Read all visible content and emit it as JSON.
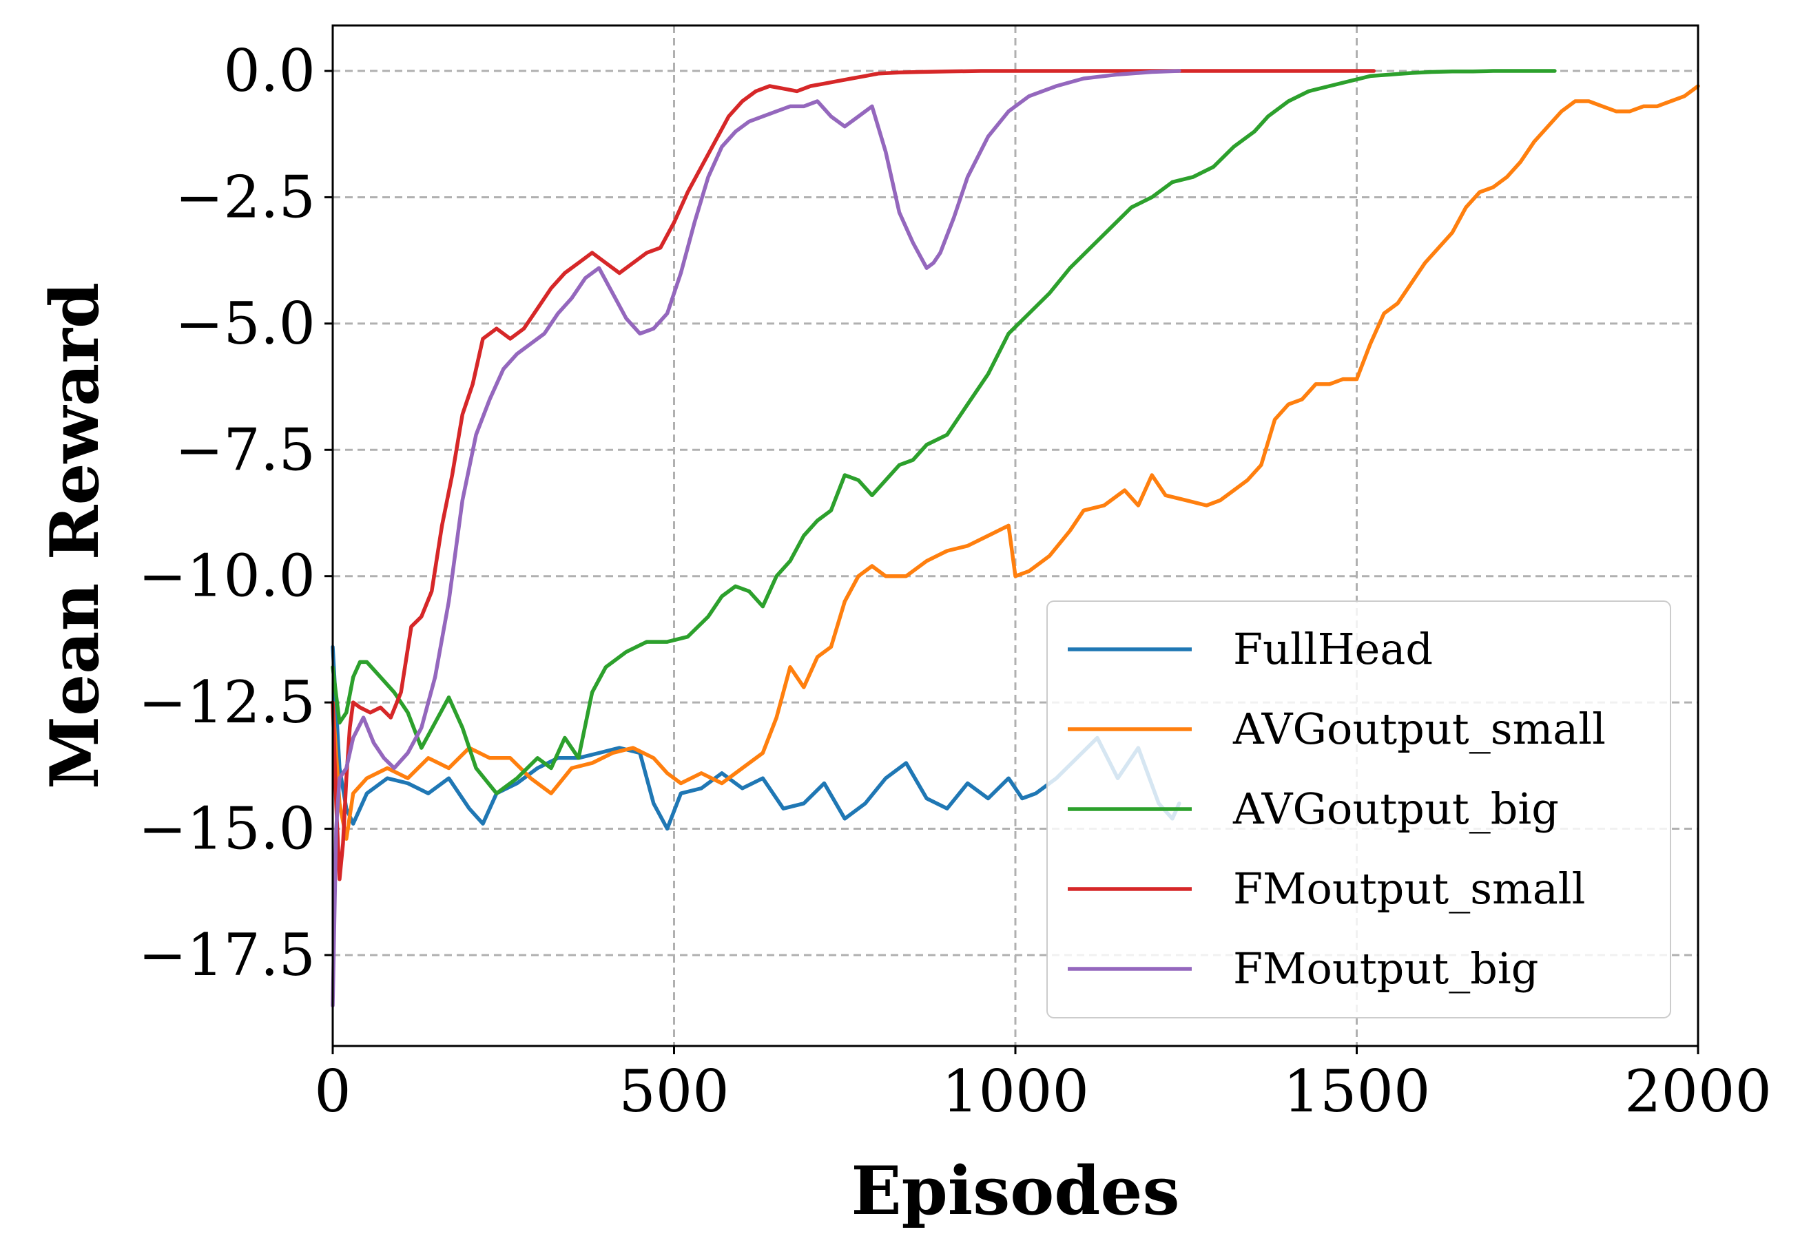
{
  "chart_data": {
    "type": "line",
    "title": "",
    "xlabel": "Episodes",
    "ylabel": "Mean Reward",
    "xlim": [
      0,
      2000
    ],
    "ylim": [
      -19.3,
      0.9
    ],
    "xticks": [
      0,
      500,
      1000,
      1500,
      2000
    ],
    "xtick_labels": [
      "0",
      "500",
      "1000",
      "1500",
      "2000"
    ],
    "yticks": [
      0.0,
      -2.5,
      -5.0,
      -7.5,
      -10.0,
      -12.5,
      -15.0,
      -17.5
    ],
    "ytick_labels": [
      "0.0",
      "−2.5",
      "−5.0",
      "−7.5",
      "−10.0",
      "−12.5",
      "−15.0",
      "−17.5"
    ],
    "grid": true,
    "legend_position": "lower-right",
    "series": [
      {
        "name": "FullHead",
        "color": "#1f77b4",
        "x": [
          0,
          10,
          20,
          30,
          50,
          80,
          110,
          140,
          170,
          200,
          220,
          240,
          270,
          300,
          330,
          360,
          390,
          420,
          450,
          470,
          490,
          510,
          540,
          570,
          600,
          630,
          660,
          690,
          720,
          750,
          780,
          810,
          840,
          870,
          900,
          930,
          960,
          990,
          1010,
          1030,
          1060,
          1090,
          1120,
          1150,
          1180,
          1210,
          1230,
          1240
        ],
        "y": [
          -11.4,
          -13.8,
          -14.6,
          -14.9,
          -14.3,
          -14.0,
          -14.1,
          -14.3,
          -14.0,
          -14.6,
          -14.9,
          -14.3,
          -14.1,
          -13.8,
          -13.6,
          -13.6,
          -13.5,
          -13.4,
          -13.5,
          -14.5,
          -15.0,
          -14.3,
          -14.2,
          -13.9,
          -14.2,
          -14.0,
          -14.6,
          -14.5,
          -14.1,
          -14.8,
          -14.5,
          -14.0,
          -13.7,
          -14.4,
          -14.6,
          -14.1,
          -14.4,
          -14.0,
          -14.4,
          -14.3,
          -14.0,
          -13.6,
          -13.2,
          -14.0,
          -13.4,
          -14.5,
          -14.8,
          -14.5
        ]
      },
      {
        "name": "AVGoutput_small",
        "color": "#ff7f0e",
        "x": [
          0,
          10,
          20,
          30,
          50,
          80,
          110,
          140,
          170,
          200,
          230,
          260,
          290,
          320,
          350,
          380,
          410,
          440,
          470,
          490,
          510,
          540,
          570,
          600,
          630,
          650,
          670,
          690,
          710,
          730,
          750,
          770,
          790,
          810,
          840,
          870,
          900,
          930,
          960,
          990,
          1000,
          1020,
          1050,
          1080,
          1100,
          1130,
          1160,
          1180,
          1200,
          1220,
          1250,
          1280,
          1300,
          1320,
          1340,
          1360,
          1380,
          1400,
          1420,
          1440,
          1460,
          1480,
          1500,
          1520,
          1540,
          1560,
          1580,
          1600,
          1620,
          1640,
          1660,
          1680,
          1700,
          1720,
          1740,
          1760,
          1780,
          1800,
          1820,
          1840,
          1860,
          1880,
          1900,
          1920,
          1940,
          1960,
          1980,
          2000
        ],
        "y": [
          -12.5,
          -14.5,
          -15.2,
          -14.3,
          -14.0,
          -13.8,
          -14.0,
          -13.6,
          -13.8,
          -13.4,
          -13.6,
          -13.6,
          -14.0,
          -14.3,
          -13.8,
          -13.7,
          -13.5,
          -13.4,
          -13.6,
          -13.9,
          -14.1,
          -13.9,
          -14.1,
          -13.8,
          -13.5,
          -12.8,
          -11.8,
          -12.2,
          -11.6,
          -11.4,
          -10.5,
          -10.0,
          -9.8,
          -10.0,
          -10.0,
          -9.7,
          -9.5,
          -9.4,
          -9.2,
          -9.0,
          -10.0,
          -9.9,
          -9.6,
          -9.1,
          -8.7,
          -8.6,
          -8.3,
          -8.6,
          -8.0,
          -8.4,
          -8.5,
          -8.6,
          -8.5,
          -8.3,
          -8.1,
          -7.8,
          -6.9,
          -6.6,
          -6.5,
          -6.2,
          -6.2,
          -6.1,
          -6.1,
          -5.4,
          -4.8,
          -4.6,
          -4.2,
          -3.8,
          -3.5,
          -3.2,
          -2.7,
          -2.4,
          -2.3,
          -2.1,
          -1.8,
          -1.4,
          -1.1,
          -0.8,
          -0.6,
          -0.6,
          -0.7,
          -0.8,
          -0.8,
          -0.7,
          -0.7,
          -0.6,
          -0.5,
          -0.3
        ]
      },
      {
        "name": "AVGoutput_big",
        "color": "#2ca02c",
        "x": [
          0,
          10,
          20,
          30,
          40,
          50,
          70,
          90,
          110,
          130,
          150,
          170,
          190,
          210,
          240,
          270,
          300,
          320,
          340,
          360,
          380,
          400,
          430,
          460,
          490,
          520,
          550,
          570,
          590,
          610,
          630,
          650,
          670,
          690,
          710,
          730,
          750,
          770,
          790,
          810,
          830,
          850,
          870,
          900,
          930,
          960,
          990,
          1020,
          1050,
          1080,
          1110,
          1140,
          1170,
          1200,
          1230,
          1260,
          1290,
          1320,
          1350,
          1370,
          1400,
          1430,
          1460,
          1490,
          1520,
          1550,
          1580,
          1610,
          1640,
          1670,
          1700,
          1730,
          1760,
          1790
        ],
        "y": [
          -11.8,
          -12.9,
          -12.7,
          -12.0,
          -11.7,
          -11.7,
          -12.0,
          -12.3,
          -12.7,
          -13.4,
          -12.9,
          -12.4,
          -13.0,
          -13.8,
          -14.3,
          -14.0,
          -13.6,
          -13.8,
          -13.2,
          -13.6,
          -12.3,
          -11.8,
          -11.5,
          -11.3,
          -11.3,
          -11.2,
          -10.8,
          -10.4,
          -10.2,
          -10.3,
          -10.6,
          -10.0,
          -9.7,
          -9.2,
          -8.9,
          -8.7,
          -8.0,
          -8.1,
          -8.4,
          -8.1,
          -7.8,
          -7.7,
          -7.4,
          -7.2,
          -6.6,
          -6.0,
          -5.2,
          -4.8,
          -4.4,
          -3.9,
          -3.5,
          -3.1,
          -2.7,
          -2.5,
          -2.2,
          -2.1,
          -1.9,
          -1.5,
          -1.2,
          -0.9,
          -0.6,
          -0.4,
          -0.3,
          -0.2,
          -0.1,
          -0.07,
          -0.04,
          -0.02,
          -0.01,
          -0.01,
          0.0,
          0.0,
          0.0,
          0.0
        ]
      },
      {
        "name": "FMoutput_small",
        "color": "#d62728",
        "x": [
          0,
          5,
          10,
          15,
          20,
          25,
          30,
          40,
          55,
          70,
          85,
          100,
          115,
          130,
          145,
          160,
          175,
          190,
          205,
          220,
          240,
          260,
          280,
          300,
          320,
          340,
          360,
          380,
          400,
          420,
          440,
          460,
          480,
          500,
          520,
          540,
          560,
          580,
          600,
          620,
          640,
          660,
          680,
          700,
          720,
          740,
          760,
          780,
          800,
          830,
          860,
          900,
          950,
          1000,
          1100,
          1200,
          1300,
          1400,
          1500,
          1525
        ],
        "y": [
          -12.5,
          -14.5,
          -16.0,
          -15.3,
          -14.0,
          -13.0,
          -12.5,
          -12.6,
          -12.7,
          -12.6,
          -12.8,
          -12.3,
          -11.0,
          -10.8,
          -10.3,
          -9.0,
          -8.0,
          -6.8,
          -6.2,
          -5.3,
          -5.1,
          -5.3,
          -5.1,
          -4.7,
          -4.3,
          -4.0,
          -3.8,
          -3.6,
          -3.8,
          -4.0,
          -3.8,
          -3.6,
          -3.5,
          -3.0,
          -2.4,
          -1.9,
          -1.4,
          -0.9,
          -0.6,
          -0.4,
          -0.3,
          -0.35,
          -0.4,
          -0.3,
          -0.25,
          -0.2,
          -0.15,
          -0.1,
          -0.05,
          -0.03,
          -0.02,
          -0.01,
          0.0,
          0.0,
          0.0,
          0.0,
          0.0,
          0.0,
          0.0,
          0.0
        ]
      },
      {
        "name": "FMoutput_big",
        "color": "#9467bd",
        "x": [
          0,
          5,
          10,
          20,
          30,
          45,
          60,
          75,
          90,
          110,
          130,
          150,
          170,
          190,
          210,
          230,
          250,
          270,
          290,
          310,
          330,
          350,
          370,
          390,
          410,
          430,
          450,
          470,
          490,
          510,
          530,
          550,
          570,
          590,
          610,
          630,
          650,
          670,
          690,
          710,
          730,
          750,
          770,
          790,
          810,
          830,
          850,
          870,
          880,
          890,
          910,
          930,
          960,
          990,
          1020,
          1060,
          1100,
          1150,
          1200,
          1240
        ],
        "y": [
          -18.5,
          -15.0,
          -14.0,
          -13.8,
          -13.2,
          -12.8,
          -13.3,
          -13.6,
          -13.8,
          -13.5,
          -13.0,
          -12.0,
          -10.5,
          -8.5,
          -7.2,
          -6.5,
          -5.9,
          -5.6,
          -5.4,
          -5.2,
          -4.8,
          -4.5,
          -4.1,
          -3.9,
          -4.4,
          -4.9,
          -5.2,
          -5.1,
          -4.8,
          -4.0,
          -3.0,
          -2.1,
          -1.5,
          -1.2,
          -1.0,
          -0.9,
          -0.8,
          -0.7,
          -0.7,
          -0.6,
          -0.9,
          -1.1,
          -0.9,
          -0.7,
          -1.6,
          -2.8,
          -3.4,
          -3.9,
          -3.8,
          -3.6,
          -2.9,
          -2.1,
          -1.3,
          -0.8,
          -0.5,
          -0.3,
          -0.15,
          -0.07,
          -0.02,
          0.0
        ]
      }
    ]
  }
}
